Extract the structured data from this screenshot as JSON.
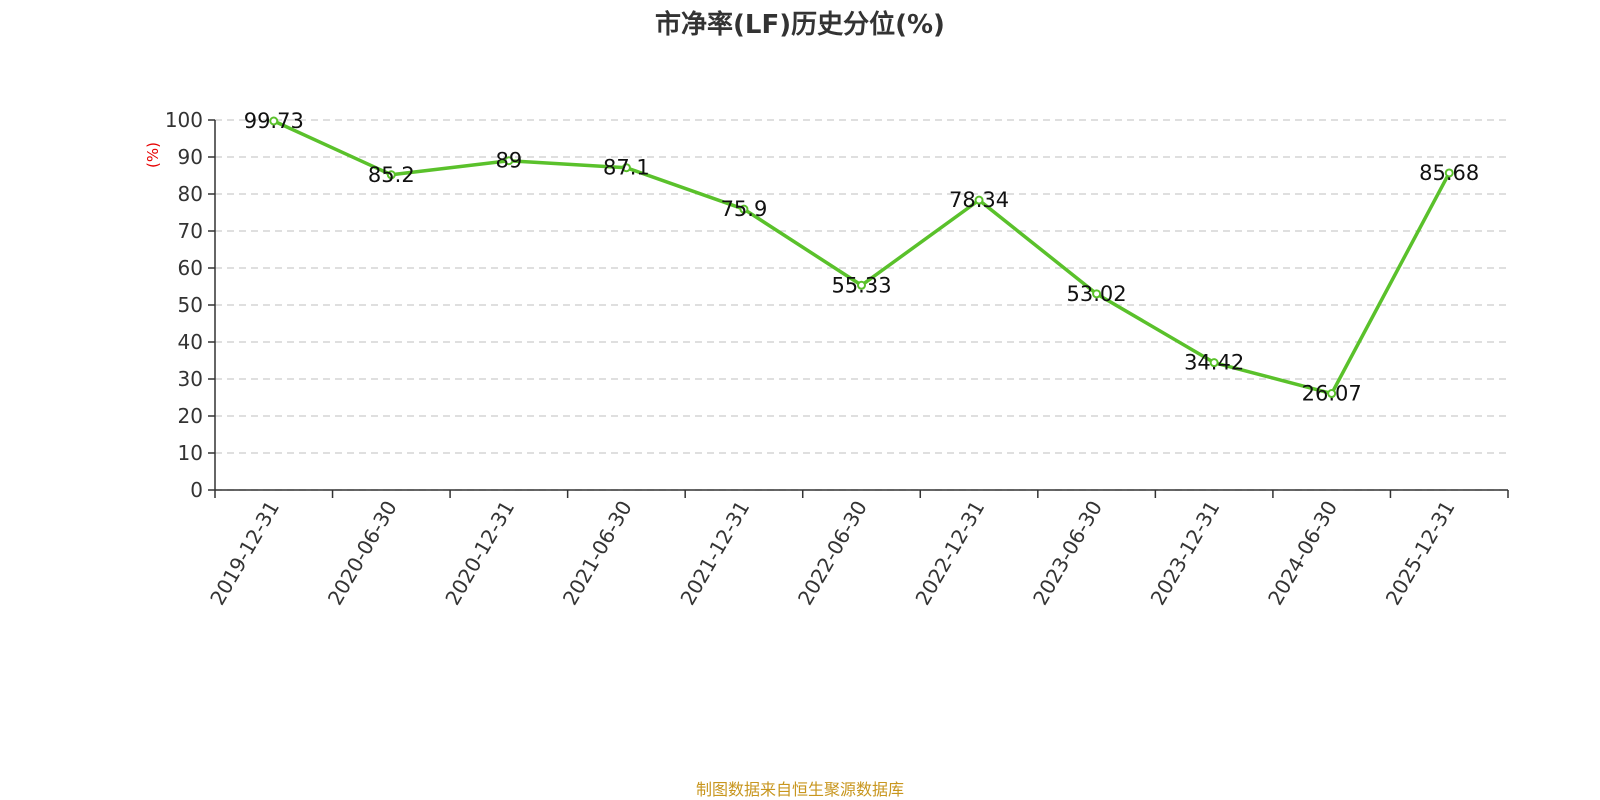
{
  "chart_data": {
    "type": "line",
    "title": "市净率(LF)历史分位(%)",
    "ylabel": "(%)",
    "xlabel": "",
    "categories": [
      "2019-12-31",
      "2020-06-30",
      "2020-12-31",
      "2021-06-30",
      "2021-12-31",
      "2022-06-30",
      "2022-12-31",
      "2023-06-30",
      "2023-12-31",
      "2024-06-30",
      "2025-12-31"
    ],
    "series": [
      {
        "values": [
          99.73,
          85.2,
          89,
          87.1,
          75.9,
          55.33,
          78.34,
          53.02,
          34.42,
          26.07,
          85.68
        ]
      }
    ],
    "data_labels": [
      "99.73",
      "85.2",
      "89",
      "87.1",
      "75.9",
      "55.33",
      "78.34",
      "53.02",
      "34.42",
      "26.07",
      "85.68"
    ],
    "ylim": [
      0,
      100
    ],
    "yticks": [
      "0",
      "10",
      "20",
      "30",
      "40",
      "50",
      "60",
      "70",
      "80",
      "90",
      "100"
    ],
    "grid": true,
    "line_color": "#5ac12b",
    "ylabel_color": "#e60000"
  },
  "source": "制图数据来自恒生聚源数据库"
}
